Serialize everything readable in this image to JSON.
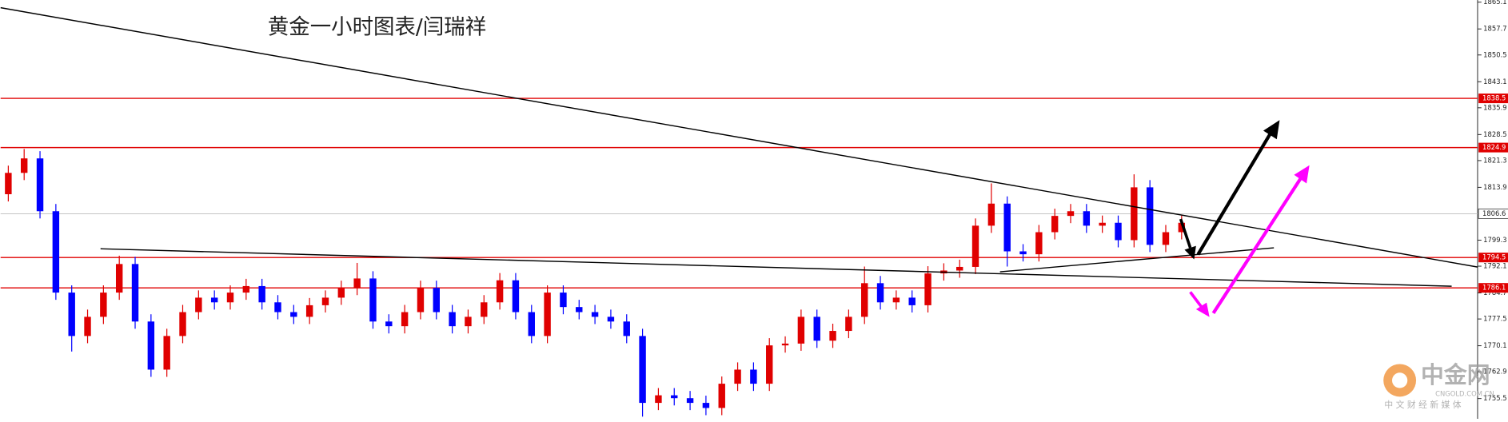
{
  "chart_data": {
    "type": "candlestick",
    "title": "黄金一小时图表/闫瑞祥",
    "up_color": "#e00000",
    "down_color": "#0000ff",
    "candles": [
      [
        1812.0,
        1819.9,
        1810.0,
        1817.9
      ],
      [
        1817.9,
        1824.5,
        1815.9,
        1821.9
      ],
      [
        1821.9,
        1823.9,
        1805.3,
        1807.3
      ],
      [
        1807.3,
        1809.3,
        1782.8,
        1784.8
      ],
      [
        1784.8,
        1786.8,
        1768.5,
        1772.8
      ],
      [
        1772.8,
        1780.1,
        1770.8,
        1778.1
      ],
      [
        1778.1,
        1786.8,
        1776.1,
        1784.8
      ],
      [
        1784.8,
        1795.0,
        1782.8,
        1792.7
      ],
      [
        1792.7,
        1794.7,
        1774.8,
        1776.8
      ],
      [
        1776.8,
        1778.8,
        1761.5,
        1763.5
      ],
      [
        1763.5,
        1774.8,
        1761.5,
        1772.8
      ],
      [
        1772.8,
        1781.4,
        1770.8,
        1779.4
      ],
      [
        1779.4,
        1785.4,
        1777.4,
        1783.4
      ],
      [
        1783.4,
        1785.4,
        1780.1,
        1782.1
      ],
      [
        1782.1,
        1786.8,
        1780.1,
        1784.8
      ],
      [
        1784.8,
        1788.6,
        1782.8,
        1786.6
      ],
      [
        1786.6,
        1788.6,
        1780.1,
        1782.1
      ],
      [
        1782.1,
        1784.1,
        1777.4,
        1779.4
      ],
      [
        1779.4,
        1781.4,
        1776.1,
        1778.1
      ],
      [
        1778.1,
        1783.3,
        1776.1,
        1781.3
      ],
      [
        1781.3,
        1785.4,
        1779.3,
        1783.4
      ],
      [
        1783.4,
        1788.1,
        1781.4,
        1786.1
      ],
      [
        1786.1,
        1793.0,
        1784.1,
        1788.7
      ],
      [
        1788.7,
        1790.7,
        1774.8,
        1776.8
      ],
      [
        1776.8,
        1778.8,
        1773.5,
        1775.5
      ],
      [
        1775.5,
        1781.4,
        1773.5,
        1779.4
      ],
      [
        1779.4,
        1788.1,
        1777.4,
        1786.1
      ],
      [
        1786.1,
        1788.1,
        1777.4,
        1779.4
      ],
      [
        1779.4,
        1781.4,
        1773.5,
        1775.5
      ],
      [
        1775.5,
        1780.1,
        1773.5,
        1778.1
      ],
      [
        1778.1,
        1784.1,
        1776.1,
        1782.1
      ],
      [
        1782.1,
        1790.2,
        1780.1,
        1788.2
      ],
      [
        1788.2,
        1790.2,
        1777.4,
        1779.4
      ],
      [
        1779.4,
        1781.4,
        1770.8,
        1772.8
      ],
      [
        1772.8,
        1786.8,
        1770.8,
        1784.8
      ],
      [
        1784.8,
        1786.8,
        1778.8,
        1780.8
      ],
      [
        1780.8,
        1782.8,
        1777.4,
        1779.4
      ],
      [
        1779.4,
        1781.4,
        1776.1,
        1778.1
      ],
      [
        1778.1,
        1780.1,
        1774.8,
        1776.8
      ],
      [
        1776.8,
        1778.8,
        1770.8,
        1772.8
      ],
      [
        1772.8,
        1774.8,
        1750.5,
        1754.3
      ],
      [
        1754.3,
        1758.4,
        1752.3,
        1756.4
      ],
      [
        1756.4,
        1758.4,
        1753.6,
        1755.6
      ],
      [
        1755.6,
        1757.6,
        1752.3,
        1754.3
      ],
      [
        1754.3,
        1756.3,
        1750.9,
        1752.9
      ],
      [
        1752.9,
        1761.6,
        1750.9,
        1759.6
      ],
      [
        1759.6,
        1765.5,
        1757.6,
        1763.5
      ],
      [
        1763.5,
        1765.5,
        1757.6,
        1759.6
      ],
      [
        1759.6,
        1772.2,
        1757.6,
        1770.2
      ],
      [
        1770.2,
        1772.7,
        1768.2,
        1770.7
      ],
      [
        1770.7,
        1780.1,
        1768.7,
        1778.1
      ],
      [
        1778.1,
        1780.1,
        1769.5,
        1771.5
      ],
      [
        1771.5,
        1776.2,
        1769.5,
        1774.2
      ],
      [
        1774.2,
        1780.1,
        1772.2,
        1778.1
      ],
      [
        1778.1,
        1792.0,
        1776.1,
        1787.4
      ],
      [
        1787.4,
        1789.4,
        1780.1,
        1782.1
      ],
      [
        1782.1,
        1785.4,
        1780.1,
        1783.4
      ],
      [
        1783.4,
        1785.4,
        1779.3,
        1781.3
      ],
      [
        1781.3,
        1792.1,
        1779.3,
        1790.1
      ],
      [
        1790.1,
        1792.9,
        1788.1,
        1790.9
      ],
      [
        1790.9,
        1793.9,
        1788.9,
        1791.9
      ],
      [
        1791.9,
        1805.3,
        1789.9,
        1803.3
      ],
      [
        1803.3,
        1815.0,
        1801.3,
        1809.4
      ],
      [
        1809.4,
        1811.4,
        1792.0,
        1796.2
      ],
      [
        1796.2,
        1798.2,
        1793.4,
        1795.4
      ],
      [
        1795.4,
        1803.5,
        1793.4,
        1801.5
      ],
      [
        1801.5,
        1808.0,
        1799.5,
        1806.0
      ],
      [
        1806.0,
        1809.3,
        1804.0,
        1807.3
      ],
      [
        1807.3,
        1809.3,
        1801.3,
        1803.3
      ],
      [
        1803.3,
        1806.1,
        1801.3,
        1804.1
      ],
      [
        1804.1,
        1806.1,
        1797.3,
        1799.3
      ],
      [
        1799.3,
        1817.5,
        1797.3,
        1813.9
      ],
      [
        1813.9,
        1815.9,
        1796.0,
        1798.0
      ],
      [
        1798.0,
        1803.5,
        1796.0,
        1801.5
      ],
      [
        1801.5,
        1806.1,
        1799.5,
        1804.1
      ]
    ],
    "ylim": [
      1749.9,
      1865.7
    ],
    "yticks": [
      1865.1,
      1857.7,
      1850.5,
      1843.1,
      1835.9,
      1828.5,
      1821.3,
      1813.9,
      1799.3,
      1792.1,
      1784.7,
      1777.5,
      1770.1,
      1762.9,
      1755.5
    ],
    "levels": [
      1838.5,
      1824.9,
      1794.5,
      1786.1
    ],
    "level_color": "#e00000",
    "current_price": 1806.6,
    "watermark": {
      "brand": "中金网",
      "site": "CNGOLD.COM.CN",
      "slogan": "中 文 财 经 新 媒 体"
    }
  }
}
